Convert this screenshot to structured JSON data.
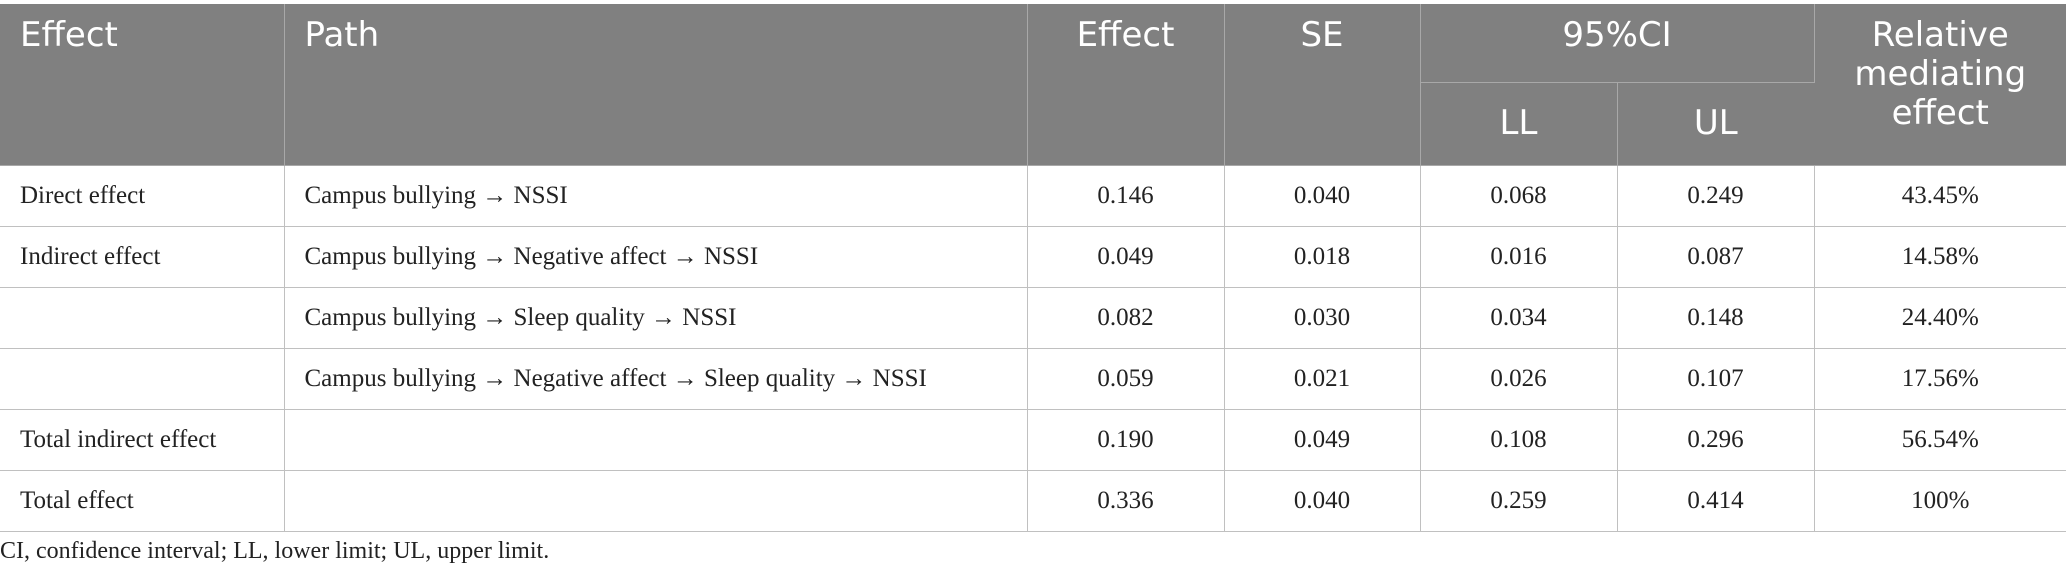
{
  "headers": {
    "effect": "Effect",
    "path": "Path",
    "effect_value": "Effect",
    "se": "SE",
    "ci": "95%CI",
    "ll": "LL",
    "ul": "UL",
    "relative": "Relative mediating effect"
  },
  "rows": [
    {
      "effect": "Direct effect",
      "path": "Campus bullying → NSSI",
      "value": "0.146",
      "se": "0.040",
      "ll": "0.068",
      "ul": "0.249",
      "relative": "43.45%"
    },
    {
      "effect": "Indirect effect",
      "path": "Campus bullying → Negative affect → NSSI",
      "value": "0.049",
      "se": "0.018",
      "ll": "0.016",
      "ul": "0.087",
      "relative": "14.58%"
    },
    {
      "effect": "",
      "path": "Campus bullying → Sleep quality → NSSI",
      "value": "0.082",
      "se": "0.030",
      "ll": "0.034",
      "ul": "0.148",
      "relative": "24.40%"
    },
    {
      "effect": "",
      "path": "Campus bullying → Negative affect → Sleep quality → NSSI",
      "value": "0.059",
      "se": "0.021",
      "ll": "0.026",
      "ul": "0.107",
      "relative": "17.56%"
    },
    {
      "effect": "Total indirect effect",
      "path": "",
      "value": "0.190",
      "se": "0.049",
      "ll": "0.108",
      "ul": "0.296",
      "relative": "56.54%"
    },
    {
      "effect": "Total effect",
      "path": "",
      "value": "0.336",
      "se": "0.040",
      "ll": "0.259",
      "ul": "0.414",
      "relative": "100%"
    }
  ],
  "footnote": "CI, confidence interval; LL, lower limit; UL, upper limit.",
  "colors": {
    "header_bg": "#808080",
    "header_text": "#ffffff",
    "border": "#c0c0c0"
  }
}
